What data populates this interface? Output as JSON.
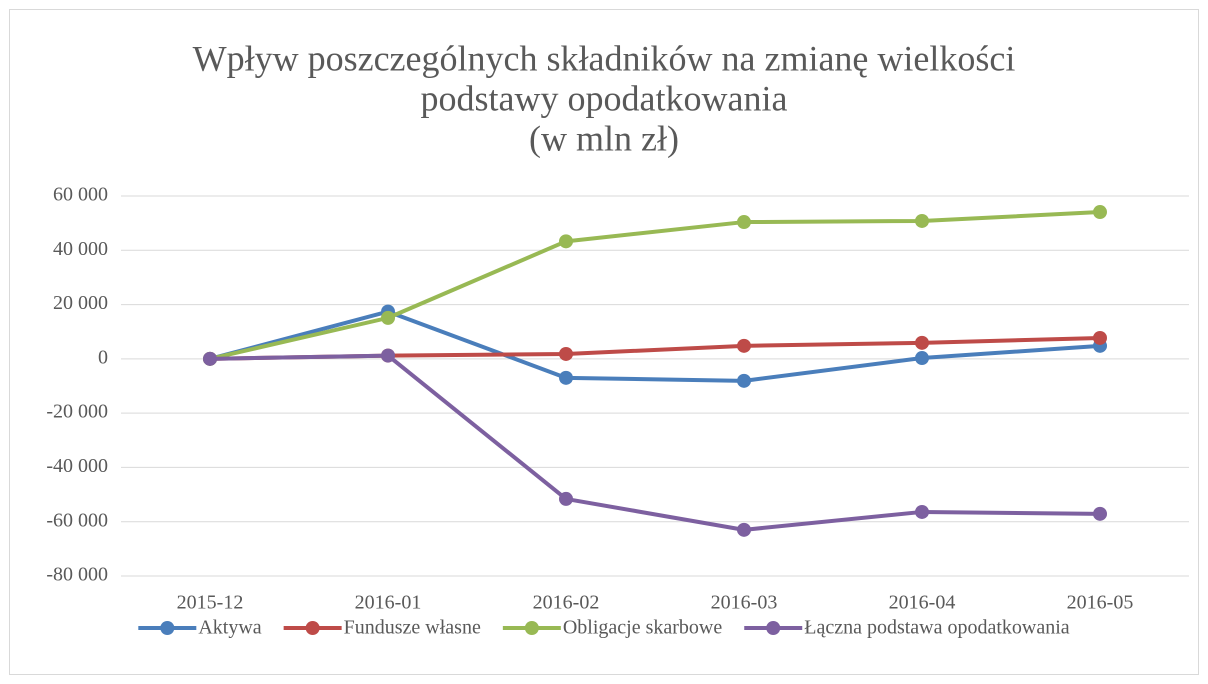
{
  "chart_data": {
    "type": "line",
    "title": [
      "Wpływ poszczególnych składników na zmianę wielkości",
      "podstawy opodatkowania",
      "(w mln zł)"
    ],
    "categories": [
      "2015-12",
      "2016-01",
      "2016-02",
      "2016-03",
      "2016-04",
      "2016-05"
    ],
    "series": [
      {
        "name": "Aktywa",
        "color": "#4a7ebb",
        "values": [
          0,
          17400,
          -7000,
          -8100,
          300,
          4800
        ]
      },
      {
        "name": "Fundusze własne",
        "color": "#be4b48",
        "values": [
          0,
          1200,
          1800,
          4800,
          5900,
          7700
        ]
      },
      {
        "name": "Obligacje skarbowe",
        "color": "#98b954",
        "values": [
          0,
          15100,
          43300,
          50400,
          50800,
          54100
        ]
      },
      {
        "name": "Łączna podstawa opodatkowania",
        "color": "#7d60a0",
        "values": [
          0,
          1200,
          -51600,
          -63000,
          -56400,
          -57100
        ]
      }
    ],
    "ylim": [
      -80000,
      60000
    ],
    "yticks": [
      {
        "value": -80000,
        "label": "-80 000"
      },
      {
        "value": -60000,
        "label": "-60 000"
      },
      {
        "value": -40000,
        "label": "-40 000"
      },
      {
        "value": -20000,
        "label": "-20 000"
      },
      0,
      {
        "value": 20000,
        "label": "20 000"
      },
      {
        "value": 40000,
        "label": "40 000"
      },
      {
        "value": 60000,
        "label": "60 000"
      }
    ],
    "grid": true,
    "legend": "bottom"
  }
}
